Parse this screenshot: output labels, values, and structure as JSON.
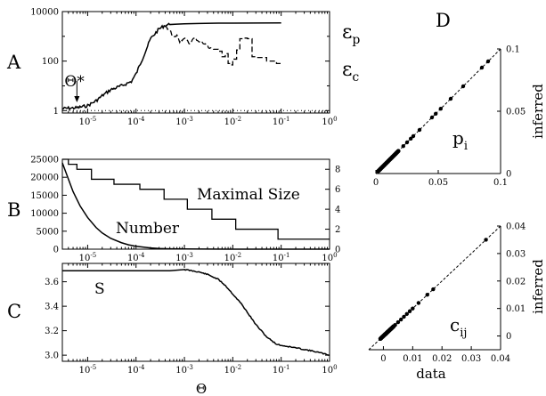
{
  "chart_data": [
    {
      "panel": "A",
      "type": "line",
      "xscale": "log",
      "yscale": "log",
      "xlim": [
        3e-06,
        1
      ],
      "ylim": [
        0.8,
        10000
      ],
      "x_ticks": [
        "10^-5",
        "10^-4",
        "10^-3",
        "10^-2",
        "10^-1",
        "10^0"
      ],
      "y_ticks": [
        "1",
        "100",
        "10000"
      ],
      "annotation": "Θ*",
      "annotation_x": 6e-06,
      "reference_level": 1,
      "series": [
        {
          "name": "εp",
          "label_base": "ε",
          "label_sub": "p",
          "style": "solid",
          "x": [
            3e-06,
            4e-06,
            6e-06,
            8e-06,
            1e-05,
            1.5e-05,
            2e-05,
            3e-05,
            5e-05,
            8e-05,
            0.0001,
            0.00015,
            0.0002,
            0.0003,
            0.0004,
            0.0005,
            0.0007,
            0.001,
            0.002,
            0.005,
            0.01,
            0.03,
            0.1
          ],
          "values": [
            1.2,
            1.25,
            1.3,
            1.45,
            1.6,
            2.5,
            4,
            7,
            10,
            15,
            30,
            200,
            800,
            2000,
            2800,
            3000,
            3100,
            3200,
            3300,
            3400,
            3400,
            3450,
            3500
          ]
        },
        {
          "name": "εc",
          "label_base": "ε",
          "label_sub": "c",
          "style": "dashed",
          "x": [
            0.0004,
            0.0005,
            0.0006,
            0.0007,
            0.0008,
            0.001,
            0.0013,
            0.0016,
            0.002,
            0.003,
            0.004,
            0.005,
            0.006,
            0.007,
            0.008,
            0.009,
            0.01,
            0.012,
            0.014,
            0.016,
            0.02,
            0.025,
            0.03,
            0.05,
            0.08,
            0.1
          ],
          "values": [
            2500,
            1800,
            900,
            1200,
            600,
            900,
            500,
            900,
            600,
            400,
            300,
            250,
            150,
            200,
            80,
            70,
            120,
            280,
            800,
            850,
            800,
            150,
            140,
            100,
            80,
            75
          ]
        }
      ]
    },
    {
      "panel": "B",
      "type": "line",
      "xscale": "log",
      "xlim": [
        3e-06,
        1
      ],
      "ylim_left": [
        0,
        25000
      ],
      "ylim_right": [
        0,
        9
      ],
      "y_ticks_left": [
        "0",
        "5000",
        "10000",
        "15000",
        "20000",
        "25000"
      ],
      "y_ticks_right": [
        "0",
        "2",
        "4",
        "6",
        "8"
      ],
      "x_ticks": [
        "10^-5",
        "10^-4",
        "10^-3",
        "10^-2",
        "10^-1",
        "10^0"
      ],
      "series": [
        {
          "name": "Number",
          "axis": "left",
          "x": [
            3e-06,
            4e-06,
            5e-06,
            7e-06,
            1e-05,
            1.5e-05,
            2e-05,
            3e-05,
            5e-05,
            7e-05,
            0.0001,
            0.0002,
            0.0003,
            0.0005,
            0.001,
            0.003,
            0.01,
            0.03,
            0.1,
            1
          ],
          "values": [
            24000,
            19500,
            16000,
            12000,
            8800,
            6000,
            4500,
            3000,
            1800,
            1200,
            800,
            350,
            200,
            100,
            50,
            20,
            8,
            3,
            1,
            0
          ]
        },
        {
          "name": "Maximal Size",
          "axis": "right",
          "step": true,
          "x": [
            3e-06,
            4e-06,
            6e-06,
            1.2e-05,
            3.5e-05,
            0.00012,
            0.00038,
            0.00115,
            0.0037,
            0.0115,
            0.086,
            1
          ],
          "values": [
            9,
            8.5,
            8,
            7,
            6.5,
            6,
            5,
            4,
            3,
            2,
            1,
            1
          ]
        }
      ]
    },
    {
      "panel": "C",
      "type": "line",
      "xscale": "log",
      "xlim": [
        3e-06,
        1
      ],
      "ylim": [
        2.95,
        3.75
      ],
      "y_ticks": [
        "3.0",
        "3.2",
        "3.4",
        "3.6"
      ],
      "x_ticks": [
        "10^-5",
        "10^-4",
        "10^-3",
        "10^-2",
        "10^-1",
        "10^0"
      ],
      "xlabel": "Θ",
      "series": [
        {
          "name": "S",
          "x": [
            3e-06,
            1e-05,
            0.0001,
            0.0005,
            0.001,
            0.002,
            0.003,
            0.005,
            0.007,
            0.01,
            0.015,
            0.02,
            0.03,
            0.05,
            0.08,
            0.1,
            0.2,
            0.5,
            1
          ],
          "values": [
            3.69,
            3.69,
            3.69,
            3.69,
            3.7,
            3.68,
            3.66,
            3.62,
            3.57,
            3.5,
            3.42,
            3.35,
            3.25,
            3.15,
            3.09,
            3.08,
            3.06,
            3.03,
            3.0
          ]
        }
      ]
    },
    {
      "panel": "D-top",
      "type": "scatter",
      "xlim": [
        0,
        0.1
      ],
      "ylim": [
        0,
        0.1
      ],
      "x_ticks": [
        "0",
        "0.05",
        "0.1"
      ],
      "y_ticks": [
        "0",
        "0.05",
        "0.1"
      ],
      "ylabel": "inferred",
      "label_base": "p",
      "label_sub": "i",
      "diagonal": true,
      "x": [
        0.002,
        0.004,
        0.005,
        0.007,
        0.008,
        0.01,
        0.012,
        0.015,
        0.018,
        0.022,
        0.025,
        0.028,
        0.03,
        0.035,
        0.045,
        0.048,
        0.052,
        0.06,
        0.07,
        0.085,
        0.09
      ],
      "y": [
        0.002,
        0.004,
        0.005,
        0.007,
        0.008,
        0.01,
        0.012,
        0.015,
        0.018,
        0.022,
        0.025,
        0.028,
        0.03,
        0.035,
        0.045,
        0.048,
        0.052,
        0.06,
        0.07,
        0.085,
        0.09
      ]
    },
    {
      "panel": "D-bottom",
      "type": "scatter",
      "xlim": [
        -0.005,
        0.04
      ],
      "ylim": [
        -0.005,
        0.04
      ],
      "x_ticks": [
        "0",
        "0.01",
        "0.02",
        "0.03",
        "0.04"
      ],
      "y_ticks": [
        "0",
        "0.01",
        "0.02",
        "0.03",
        "0.04"
      ],
      "xlabel": "data",
      "ylabel": "inferred",
      "label_base": "c",
      "label_sub": "ij",
      "diagonal": true,
      "x": [
        -0.001,
        0,
        0.0005,
        0.001,
        0.0015,
        0.002,
        0.0025,
        0.003,
        0.0035,
        0.004,
        0.005,
        0.006,
        0.007,
        0.008,
        0.009,
        0.01,
        0.012,
        0.015,
        0.017,
        0.035
      ],
      "y": [
        -0.001,
        0,
        0.0005,
        0.001,
        0.0015,
        0.002,
        0.0025,
        0.003,
        0.0035,
        0.004,
        0.005,
        0.006,
        0.007,
        0.008,
        0.009,
        0.01,
        0.012,
        0.015,
        0.017,
        0.035
      ]
    }
  ]
}
